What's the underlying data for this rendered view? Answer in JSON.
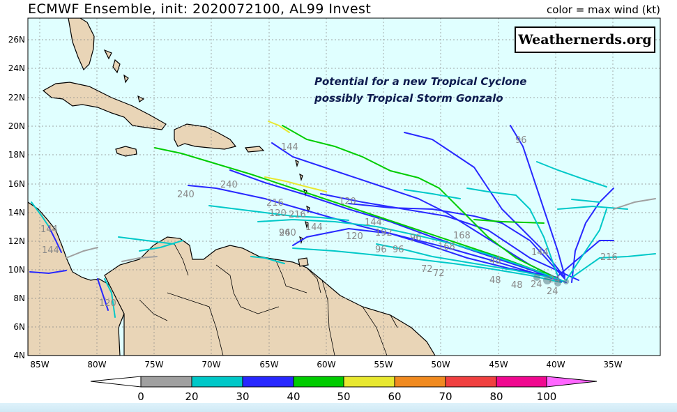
{
  "header": {
    "title": "ECMWF Ensemble, init: 2020072100, AL99 Invest",
    "legend_caption": "color = max wind (kt)"
  },
  "branding": {
    "site": "Weathernerds.org"
  },
  "annotation": {
    "line1": "Potential for a new Tropical Cyclone",
    "line2": "possibly Tropical Storm Gonzalo"
  },
  "axes": {
    "lat_labels": [
      "26N",
      "24N",
      "22N",
      "20N",
      "18N",
      "16N",
      "14N",
      "12N",
      "10N",
      "8N",
      "6N",
      "4N"
    ],
    "lon_labels": [
      "85W",
      "80W",
      "75W",
      "70W",
      "65W",
      "60W",
      "55W",
      "50W",
      "45W",
      "40W",
      "35W"
    ]
  },
  "colorbar": {
    "ticks": [
      "0",
      "20",
      "30",
      "40",
      "50",
      "60",
      "70",
      "80",
      "100"
    ],
    "colors": [
      "#a0a0a0",
      "#00c8c8",
      "#2828ff",
      "#00cc00",
      "#e8e830",
      "#f08a20",
      "#f04040",
      "#f00890",
      "#ff66ff"
    ]
  },
  "hour_labels": [
    "144",
    "96",
    "240",
    "240",
    "216",
    "120",
    "216",
    "144",
    "120",
    "96",
    "240",
    "144",
    "192",
    "120",
    "168",
    "96",
    "168",
    "96",
    "96",
    "72",
    "72",
    "48",
    "48",
    "48",
    "24",
    "24",
    "144",
    "216",
    "24",
    "144",
    "144",
    "120",
    "240"
  ]
}
